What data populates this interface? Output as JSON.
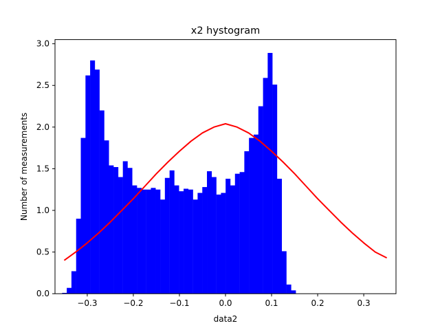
{
  "chart_data": {
    "type": "bar",
    "title": "x2 hystogram",
    "xlabel": "data2",
    "ylabel": "Number of measurements",
    "xlim": [
      -0.37,
      0.37
    ],
    "ylim": [
      0,
      3.05
    ],
    "xticks": [
      -0.3,
      -0.2,
      -0.1,
      0.0,
      0.1,
      0.2,
      0.3
    ],
    "xtick_labels": [
      "−0.3",
      "−0.2",
      "−0.1",
      "0.0",
      "0.1",
      "0.2",
      "0.3"
    ],
    "yticks": [
      0.0,
      0.5,
      1.0,
      1.5,
      2.0,
      2.5,
      3.0
    ],
    "ytick_labels": [
      "0.0",
      "0.5",
      "1.0",
      "1.5",
      "2.0",
      "2.5",
      "3.0"
    ],
    "grid": false,
    "bar_width": 0.0105,
    "colors": {
      "bars": "#0000ff",
      "curve": "#ff0000",
      "axes": "#000000"
    },
    "series": [
      {
        "type": "bar",
        "x": [
          -0.3493,
          -0.3392,
          -0.3291,
          -0.3189,
          -0.3088,
          -0.2986,
          -0.2885,
          -0.2784,
          -0.2682,
          -0.2581,
          -0.2479,
          -0.2378,
          -0.2277,
          -0.2175,
          -0.2074,
          -0.1972,
          -0.1871,
          -0.177,
          -0.1668,
          -0.1567,
          -0.1465,
          -0.1364,
          -0.1263,
          -0.1161,
          -0.106,
          -0.0958,
          -0.0857,
          -0.0756,
          -0.0654,
          -0.0553,
          -0.0451,
          -0.035,
          -0.0249,
          -0.0147,
          -0.0046,
          0.0055,
          0.0157,
          0.0258,
          0.036,
          0.0461,
          0.0562,
          0.0664,
          0.0765,
          0.0867,
          0.0968,
          0.1069,
          0.1171,
          0.1272,
          0.1374,
          0.1475,
          0.1576,
          0.1678,
          0.1779,
          0.1881,
          0.1982,
          0.2083,
          0.2185,
          0.2286,
          0.2388,
          0.2489,
          0.259,
          0.2692,
          0.2793,
          0.2895,
          0.2996,
          0.3097,
          0.3199,
          0.33
        ],
        "values": [
          0.01,
          0.07,
          0.27,
          0.9,
          1.87,
          2.62,
          2.8,
          2.69,
          2.2,
          1.84,
          1.54,
          1.52,
          1.4,
          1.59,
          1.51,
          1.3,
          1.27,
          1.25,
          1.25,
          1.27,
          1.25,
          1.13,
          1.39,
          1.48,
          1.3,
          1.23,
          1.26,
          1.25,
          1.13,
          1.21,
          1.28,
          1.47,
          1.4,
          1.19,
          1.21,
          1.38,
          1.3,
          1.44,
          1.46,
          1.71,
          1.87,
          1.91,
          2.25,
          2.59,
          2.89,
          2.51,
          1.38,
          0.51,
          0.11,
          0.04,
          0.0,
          0.0,
          0.0,
          0.0,
          0.0,
          0.0,
          0.0,
          0.0,
          0.0,
          0.0,
          0.0,
          0.0,
          0.0,
          0.0,
          0.0,
          0.0,
          0.0,
          0.0
        ]
      },
      {
        "type": "line",
        "x": [
          -0.35,
          -0.325,
          -0.3,
          -0.275,
          -0.25,
          -0.225,
          -0.2,
          -0.175,
          -0.15,
          -0.125,
          -0.1,
          -0.075,
          -0.05,
          -0.025,
          0.0,
          0.025,
          0.05,
          0.075,
          0.1,
          0.125,
          0.15,
          0.175,
          0.2,
          0.225,
          0.25,
          0.275,
          0.3,
          0.325,
          0.35
        ],
        "values": [
          0.4,
          0.5,
          0.61,
          0.73,
          0.86,
          1.0,
          1.14,
          1.29,
          1.44,
          1.58,
          1.71,
          1.83,
          1.93,
          2.0,
          2.04,
          2.0,
          1.93,
          1.83,
          1.71,
          1.58,
          1.44,
          1.29,
          1.14,
          1.0,
          0.86,
          0.73,
          0.61,
          0.5,
          0.43
        ]
      }
    ]
  }
}
